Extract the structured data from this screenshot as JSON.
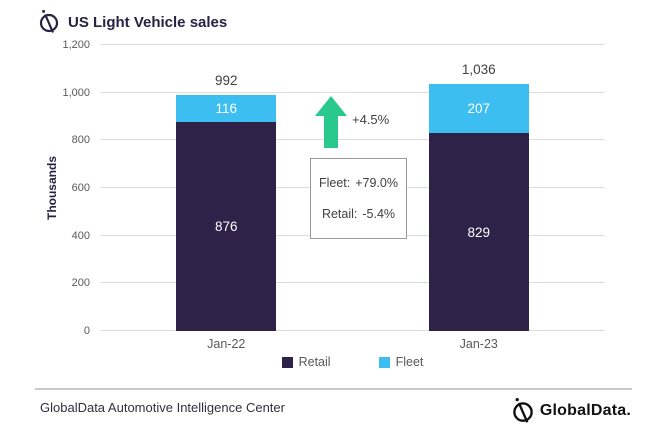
{
  "header": {
    "title": "US Light Vehicle sales"
  },
  "footer": {
    "source": "GlobalData Automotive Intelligence Center",
    "brand": "GlobalData."
  },
  "chart_data": {
    "type": "bar",
    "stacked": true,
    "title": "US Light Vehicle sales",
    "categories": [
      "Jan-22",
      "Jan-23"
    ],
    "series": [
      {
        "name": "Retail",
        "color": "#2e2248",
        "values": [
          876,
          829
        ],
        "labels": [
          "876",
          "829"
        ]
      },
      {
        "name": "Fleet",
        "color": "#3cbef0",
        "values": [
          116,
          207
        ],
        "labels": [
          "116",
          "207"
        ]
      }
    ],
    "totals": [
      992,
      1036
    ],
    "total_labels": [
      "992",
      "1,036"
    ],
    "xlabel": "",
    "ylabel": "Thousands",
    "ylim": [
      0,
      1200
    ],
    "ytick_step": 200,
    "yticks": [
      "0",
      "200",
      "400",
      "600",
      "800",
      "1,000",
      "1,200"
    ],
    "grid": true,
    "legend_position": "bottom",
    "annotations": {
      "growth_arrow": {
        "label": "+4.5%",
        "direction": "up",
        "color": "#29c98e"
      },
      "callout": {
        "rows": [
          {
            "label": "Fleet:",
            "value": "+79.0%"
          },
          {
            "label": "Retail:",
            "value": "-5.4%"
          }
        ]
      }
    }
  }
}
